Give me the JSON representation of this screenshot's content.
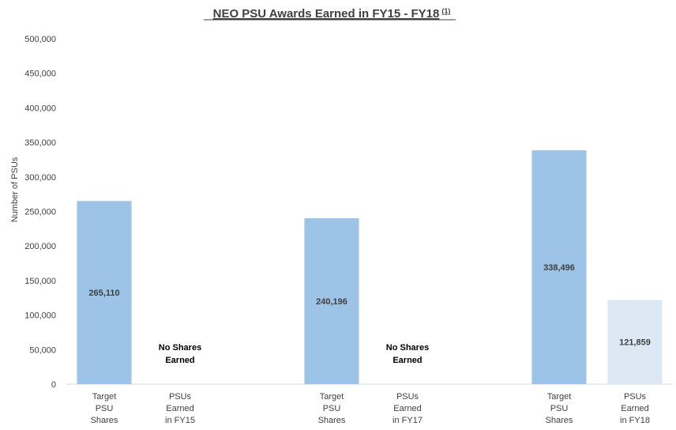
{
  "chart_data": {
    "type": "bar",
    "title": "NEO PSU Awards Earned in FY15 - FY18",
    "title_superscript": "(1)",
    "ylabel": "Number of PSUs",
    "xlabel": "",
    "ylim": [
      0,
      500000
    ],
    "yticks": [
      "0",
      "50,000",
      "100,000",
      "150,000",
      "200,000",
      "250,000",
      "300,000",
      "350,000",
      "400,000",
      "450,000",
      "500,000"
    ],
    "grid": false,
    "categories": [
      [
        "Target",
        "PSU",
        "Shares"
      ],
      [
        "PSUs",
        "Earned",
        "in FY15"
      ],
      [],
      [
        "Target",
        "PSU",
        "Shares"
      ],
      [
        "PSUs",
        "Earned",
        "in FY17"
      ],
      [],
      [
        "Target",
        "PSU",
        "Shares"
      ],
      [
        "PSUs",
        "Earned",
        "in FY18"
      ]
    ],
    "values": [
      265110,
      0,
      null,
      240196,
      0,
      null,
      338496,
      121859
    ],
    "data_labels": [
      "265,110",
      "No Shares Earned",
      "",
      "240,196",
      "No Shares Earned",
      "",
      "338,496",
      "121,859"
    ],
    "colors": [
      "#9dc3e6",
      "#9dc3e6",
      "#9dc3e6",
      "#9dc3e6",
      "#9dc3e6",
      "#9dc3e6",
      "#9dc3e6",
      "#dde8f5"
    ]
  }
}
